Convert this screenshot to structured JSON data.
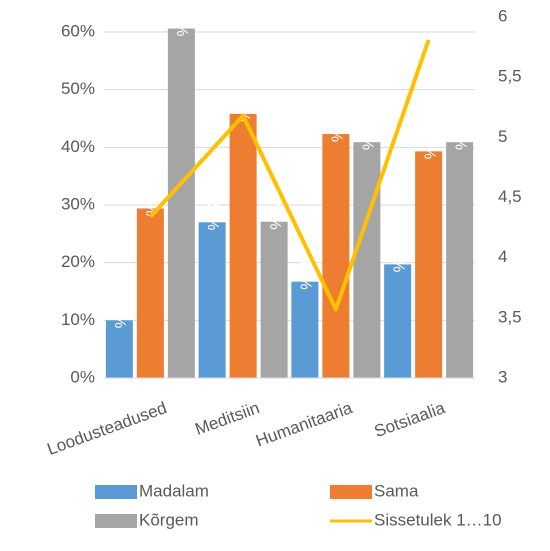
{
  "chart_data": {
    "type": "bar",
    "categories": [
      "Loodusteadused",
      "Meditsiin",
      "Humanitaaria",
      "Sotsiaalia"
    ],
    "series": [
      {
        "name": "Madalam",
        "color": "#5b9bd5",
        "values": [
          10,
          27,
          16.7,
          19.7
        ],
        "value_labels": [
          "10%",
          "27%",
          "17%",
          "20%"
        ]
      },
      {
        "name": "Sama",
        "color": "#ed7d31",
        "values": [
          29.4,
          45.8,
          42.3,
          39.3
        ],
        "value_labels": [
          "29%",
          "46%",
          "42%",
          "39%"
        ]
      },
      {
        "name": "Kõrgem",
        "color": "#a5a5a5",
        "values": [
          60.6,
          27.1,
          40.9,
          40.9
        ],
        "value_labels": [
          "61%",
          "27%",
          "41%",
          "41%"
        ]
      },
      {
        "name": "Sissetulek 1…10",
        "color": "#ffc000",
        "type": "line",
        "axis": "y2",
        "values": [
          4.34,
          5.18,
          3.57,
          5.81
        ]
      }
    ],
    "ylim": [
      0,
      60
    ],
    "yticks": [
      {
        "value": 0,
        "label": "0%"
      },
      {
        "value": 10,
        "label": "10%"
      },
      {
        "value": 20,
        "label": "20%"
      },
      {
        "value": 30,
        "label": "30%"
      },
      {
        "value": 40,
        "label": "40%"
      },
      {
        "value": 50,
        "label": "50%"
      },
      {
        "value": 60,
        "label": "60%"
      }
    ],
    "y2lim": [
      3,
      6
    ],
    "y2ticks": [
      3,
      {
        "value": 3.5,
        "label": "3,5"
      },
      4,
      {
        "value": 4.5,
        "label": "4,5"
      },
      5,
      {
        "value": 5.5,
        "label": "5,5"
      },
      6
    ],
    "grid": true,
    "legend": "bottom"
  }
}
